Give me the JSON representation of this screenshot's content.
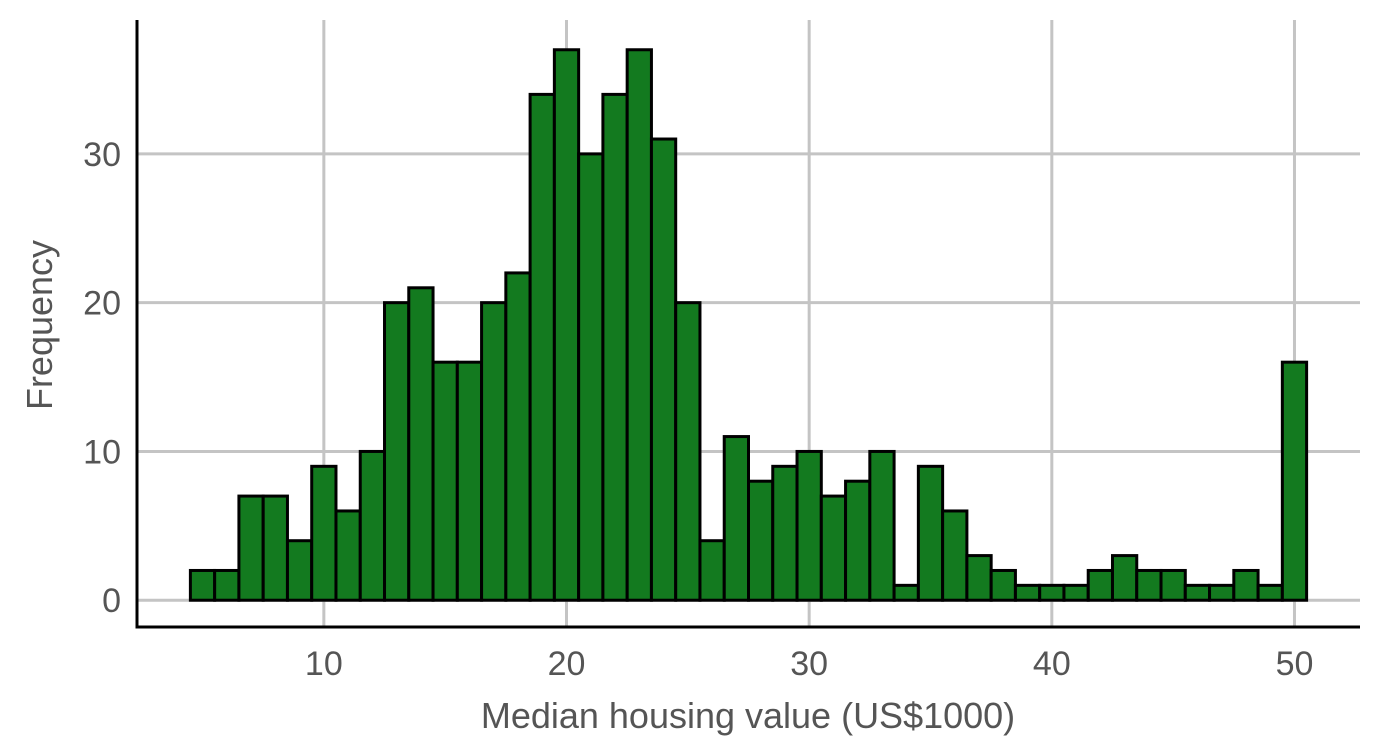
{
  "chart_data": {
    "type": "bar",
    "title": "",
    "xlabel": "Median housing value (US$1000)",
    "ylabel": "Frequency",
    "xlim": [
      2.3,
      52.7
    ],
    "ylim": [
      -1.8,
      39
    ],
    "xticks": [
      10,
      20,
      30,
      40,
      50
    ],
    "yticks": [
      0,
      10,
      20,
      30
    ],
    "grid": true,
    "legend": "none",
    "bar_fill": "#137a1f",
    "bar_edge": "#000000",
    "bins": {
      "start": 4.5,
      "width": 1.0
    },
    "values": [
      2,
      2,
      7,
      7,
      4,
      9,
      6,
      10,
      20,
      21,
      16,
      16,
      20,
      22,
      34,
      37,
      30,
      34,
      37,
      31,
      20,
      4,
      11,
      8,
      9,
      10,
      7,
      8,
      10,
      1,
      9,
      6,
      3,
      2,
      1,
      1,
      1,
      2,
      3,
      2,
      2,
      1,
      1,
      2,
      1,
      16
    ]
  }
}
